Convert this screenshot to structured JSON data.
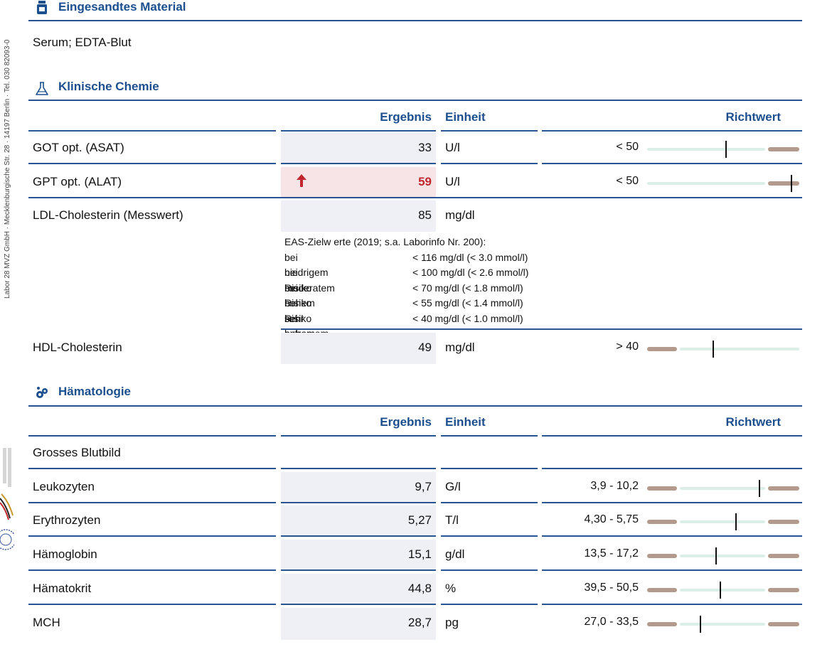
{
  "side_text": "Labor 28 MVZ GmbH · Mecklenburgische Str. 28 · 14197 Berlin · Tel. 030 82093-0",
  "material": {
    "title": "Eingesandtes Material",
    "text": "Serum; EDTA-Blut",
    "icon": "bottle-icon"
  },
  "chemie": {
    "title": "Klinische Chemie",
    "icon": "flask-icon",
    "headers": {
      "ergebnis": "Ergebnis",
      "einheit": "Einheit",
      "richtwert": "Richtwert"
    },
    "rows": [
      {
        "name": "GOT opt. (ASAT)",
        "result": "33",
        "unit": "U/l",
        "ref": "< 50",
        "flag": ""
      },
      {
        "name": "GPT opt. (ALAT)",
        "result": "59",
        "unit": "U/l",
        "ref": "< 50",
        "flag": "high"
      },
      {
        "name": "LDL-Cholesterin (Messwert)",
        "result": "85",
        "unit": "mg/dl",
        "ref": "",
        "flag": ""
      },
      {
        "name": "HDL-Cholesterin",
        "result": "49",
        "unit": "mg/dl",
        "ref": "> 40",
        "flag": ""
      }
    ],
    "ldl_note": {
      "intro": "EAS-Zielw erte (2019; s.a. Laborinfo Nr. 200):",
      "lines": [
        {
          "risk": "bei niedrigem Risiko",
          "value": "< 116 mg/dl  (< 3.0 mmol/l)"
        },
        {
          "risk": "bei moderatem Risiko",
          "value": "< 100 mg/dl  (< 2.6 mmol/l)"
        },
        {
          "risk": "bei hohem Risiko",
          "value": "<  70 mg/dl  (< 1.8 mmol/l)"
        },
        {
          "risk": "bei sehr hohem Risiko",
          "value": "<  55 mg/dl  (< 1.4 mmol/l)"
        },
        {
          "risk": "bei extremem Risiko",
          "value": "< 40 mg/dl  (< 1.0 mmol/l)"
        }
      ]
    }
  },
  "haematologie": {
    "title": "Hämatologie",
    "icon": "blood-cells-icon",
    "headers": {
      "ergebnis": "Ergebnis",
      "einheit": "Einheit",
      "richtwert": "Richtwert"
    },
    "group": "Grosses Blutbild",
    "rows": [
      {
        "name": "Leukozyten",
        "result": "9,7",
        "unit": "G/l",
        "ref": "3,9 - 10,2"
      },
      {
        "name": "Erythrozyten",
        "result": "5,27",
        "unit": "T/l",
        "ref": "4,30 - 5,75"
      },
      {
        "name": "Hämoglobin",
        "result": "15,1",
        "unit": "g/dl",
        "ref": "13,5 - 17,2"
      },
      {
        "name": "Hämatokrit",
        "result": "44,8",
        "unit": "%",
        "ref": "39,5 - 50,5"
      },
      {
        "name": "MCH",
        "result": "28,7",
        "unit": "pg",
        "ref": "27,0 - 33,5"
      }
    ]
  },
  "colors": {
    "accent": "#1d4f8f",
    "normal_range": "#dcefe6",
    "out_of_range": "#b39a8c",
    "high_flag": "#c0262d",
    "flag_bg": "#f7e4e7"
  }
}
